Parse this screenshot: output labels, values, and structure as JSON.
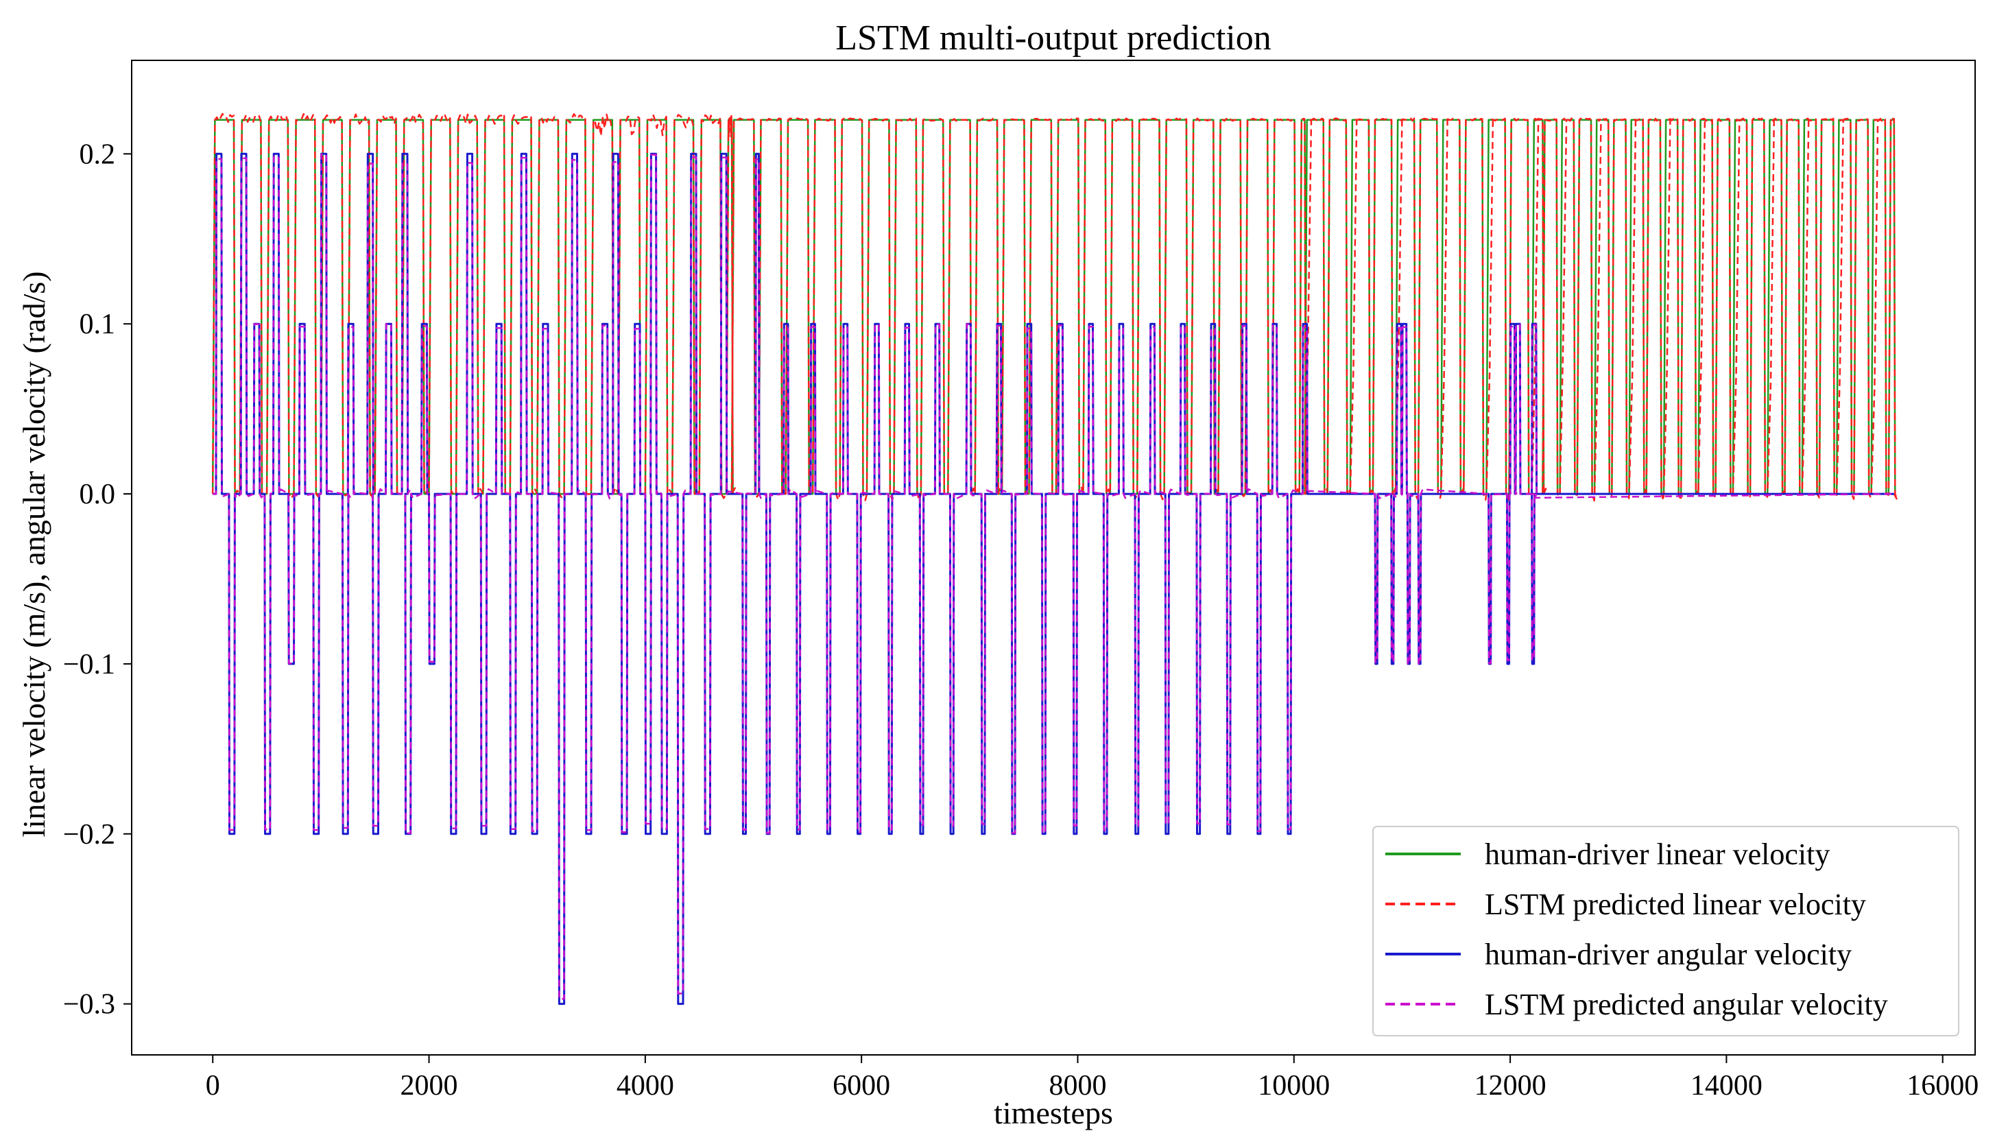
{
  "chart_data": {
    "type": "line",
    "title": "LSTM multi-output prediction",
    "xlabel": "timesteps",
    "ylabel": "linear velocity (m/s), angular velocity (rad/s)",
    "xlim": [
      -750,
      16300
    ],
    "ylim": [
      -0.33,
      0.255
    ],
    "xticks": [
      0,
      2000,
      4000,
      6000,
      8000,
      10000,
      12000,
      14000,
      16000
    ],
    "xtick_labels": [
      "0",
      "2000",
      "4000",
      "6000",
      "8000",
      "10000",
      "12000",
      "14000",
      "16000"
    ],
    "yticks": [
      -0.3,
      -0.2,
      -0.1,
      0.0,
      0.1,
      0.2
    ],
    "ytick_labels": [
      "−0.3",
      "−0.2",
      "−0.1",
      "0.0",
      "0.1",
      "0.2"
    ],
    "legend_position": "lower-right",
    "colors": {
      "green": "#1f9a1f",
      "red": "#ff2020",
      "blue": "#1a1acc",
      "magenta": "#cc10cc"
    },
    "series": [
      {
        "name": "human-driver linear velocity",
        "color": "#1f9a1f",
        "style": "solid",
        "description": "square wave between 0.0 and 0.22",
        "high": 0.22,
        "low": 0.0,
        "start": 0,
        "end": 15550,
        "segments": [
          {
            "from": 0,
            "to": 4800,
            "period": 250,
            "duty": 0.78
          },
          {
            "from": 4800,
            "to": 10100,
            "period": 250,
            "duty": 0.82
          },
          {
            "from": 10100,
            "to": 12300,
            "period": 210,
            "duty": 0.82
          },
          {
            "from": 12300,
            "to": 15550,
            "period": 160,
            "duty": 0.8
          }
        ]
      },
      {
        "name": "LSTM predicted linear velocity",
        "color": "#ff2020",
        "style": "dashed",
        "description": "noisy tracking of the linear velocity, values 0.0 to ~0.225",
        "high": 0.22,
        "low": 0.0
      },
      {
        "name": "human-driver angular velocity",
        "color": "#1a1acc",
        "style": "solid",
        "description": "pulses at 0.2, 0.1, -0.1, -0.2 and -0.3",
        "spikes_low_-0.3": [
          3200,
          4300
        ],
        "neg_pulses_-0.2_after_4800": [
          4900,
          5120,
          5400,
          5680,
          5960,
          6250,
          6540,
          6820,
          7110,
          7390,
          7670,
          7960,
          8240,
          8530,
          8810,
          9100,
          9380,
          9660,
          9940
        ],
        "neg_pulses_-0.1_after_10000": [
          10750,
          10900,
          11050,
          11150,
          11800,
          11970,
          12200
        ],
        "pos_pulses_0.1_after_5000": [
          5280,
          5530,
          5830,
          6120,
          6400,
          6680,
          6970,
          7250,
          7530,
          7820,
          8100,
          8380,
          8670,
          8950,
          9230,
          9520,
          9800,
          10080,
          10950,
          11000,
          12000,
          12050,
          12200
        ]
      },
      {
        "name": "LSTM predicted angular velocity",
        "color": "#cc10cc",
        "style": "dashed",
        "description": "tracks the angular velocity with small noise"
      }
    ]
  }
}
